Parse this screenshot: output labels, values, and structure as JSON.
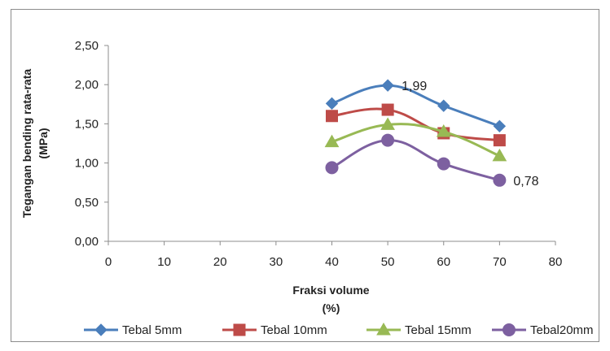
{
  "chart_data": {
    "type": "line",
    "title": "",
    "xlabel": [
      "Fraksi volume",
      "(%)"
    ],
    "ylabel": [
      "Tegangan bending rata-rata",
      "(MPa)"
    ],
    "xlim": [
      0,
      80
    ],
    "ylim": [
      0,
      2.5
    ],
    "x_ticks": [
      0,
      10,
      20,
      30,
      40,
      50,
      60,
      70,
      80
    ],
    "x_tick_labels": [
      "0",
      "10",
      "20",
      "30",
      "40",
      "50",
      "60",
      "70",
      "80"
    ],
    "y_ticks": [
      0,
      0.5,
      1.0,
      1.5,
      2.0,
      2.5
    ],
    "y_tick_labels": [
      "0,00",
      "0,50",
      "1,00",
      "1,50",
      "2,00",
      "2,50"
    ],
    "grid": false,
    "legend_position": "bottom",
    "x": [
      40,
      50,
      60,
      70
    ],
    "series": [
      {
        "name": "Tebal 5mm",
        "values": [
          1.76,
          1.99,
          1.73,
          1.47
        ],
        "color": "#4a7ebb",
        "marker": "diamond"
      },
      {
        "name": "Tebal 10mm",
        "values": [
          1.6,
          1.68,
          1.38,
          1.29
        ],
        "color": "#be4b48",
        "marker": "square"
      },
      {
        "name": "Tebal 15mm",
        "values": [
          1.27,
          1.49,
          1.4,
          1.09
        ],
        "color": "#98b954",
        "marker": "triangle"
      },
      {
        "name": "Tebal20mm",
        "values": [
          0.94,
          1.29,
          0.99,
          0.78
        ],
        "color": "#7d60a0",
        "marker": "circle"
      }
    ],
    "annotations": [
      {
        "text": "1,99",
        "series": 0,
        "point": 1
      },
      {
        "text": "0,78",
        "series": 3,
        "point": 3
      }
    ]
  }
}
